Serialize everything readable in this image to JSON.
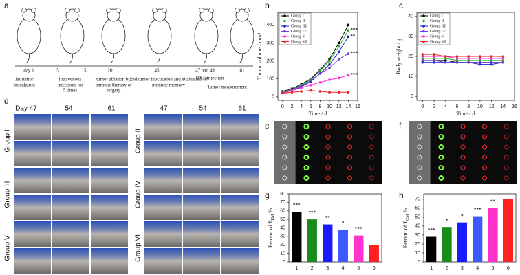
{
  "panel_letters": [
    "a",
    "b",
    "c",
    "d",
    "e",
    "f",
    "g",
    "h"
  ],
  "timeline": {
    "days": [
      "day 1",
      "5",
      "15",
      "20",
      "45",
      "47 and 49",
      "61"
    ],
    "captions": [
      [
        "1st tumor",
        "inoculation"
      ],
      [
        "intravenous",
        "injections for",
        "5 times"
      ],
      [
        "tumor ablation by",
        "immune therapy or",
        "surgery"
      ],
      [
        "2nd tumor inoculation and  evaluation of",
        "immune memory"
      ],
      [
        "IDOi injection"
      ],
      [
        "Tumor measurement"
      ]
    ]
  },
  "photos": {
    "day_headers": [
      "Day 47",
      "54",
      "61",
      "47",
      "54",
      "61"
    ],
    "groups": [
      "Group I",
      "Group III",
      "Group V",
      "Group II",
      "Group IV",
      "Group VI"
    ]
  },
  "chart_data": [
    {
      "type": "line",
      "ylabel": "Tumor volume / mm³",
      "xlabel": "Time / d",
      "x": [
        0,
        2,
        4,
        6,
        8,
        10,
        12,
        14
      ],
      "xlim": [
        -1,
        16
      ],
      "xticks": [
        0,
        2,
        4,
        6,
        8,
        10,
        12,
        14,
        16
      ],
      "ylim": [
        -20,
        470
      ],
      "yticks": [
        0,
        100,
        200,
        300,
        400
      ],
      "legend": "upper left",
      "series": [
        {
          "name": "Group I",
          "color": "#000000",
          "values": [
            30,
            45,
            70,
            100,
            150,
            210,
            300,
            400
          ],
          "significance": null
        },
        {
          "name": "Group II",
          "color": "#22b422",
          "values": [
            25,
            40,
            65,
            95,
            145,
            200,
            280,
            370
          ],
          "significance": "***"
        },
        {
          "name": "Group III",
          "color": "#1f1fd0",
          "values": [
            20,
            35,
            55,
            85,
            130,
            180,
            250,
            335
          ],
          "significance": "**"
        },
        {
          "name": "Group IV",
          "color": "#6a3dd8",
          "values": [
            20,
            40,
            60,
            90,
            130,
            160,
            210,
            240
          ],
          "significance": "***"
        },
        {
          "name": "Group V",
          "color": "#ff2bd6",
          "values": [
            20,
            35,
            50,
            65,
            80,
            95,
            105,
            120
          ],
          "significance": "***"
        },
        {
          "name": "Group VI",
          "color": "#ee2222",
          "values": [
            20,
            25,
            30,
            35,
            30,
            25,
            25,
            25
          ],
          "significance": null
        }
      ]
    },
    {
      "type": "line",
      "ylabel": "Body weight / g",
      "xlabel": "Time / d",
      "x": [
        0,
        2,
        4,
        6,
        8,
        10,
        12,
        14
      ],
      "xlim": [
        -1,
        16
      ],
      "xticks": [
        0,
        2,
        4,
        6,
        8,
        10,
        12,
        14,
        16
      ],
      "ylim": [
        -2,
        42
      ],
      "yticks": [
        0,
        10,
        20,
        30,
        40
      ],
      "legend": "upper left",
      "series": [
        {
          "name": "Group I",
          "color": "#000000",
          "values": [
            18,
            18,
            18,
            17,
            17,
            17,
            17,
            17
          ],
          "significance": null
        },
        {
          "name": "Group II",
          "color": "#22b422",
          "values": [
            19,
            19,
            19,
            18,
            18,
            18,
            18,
            18
          ],
          "significance": null
        },
        {
          "name": "Group III",
          "color": "#1f1fd0",
          "values": [
            17,
            17,
            17,
            17,
            17,
            16,
            16,
            17
          ],
          "significance": null
        },
        {
          "name": "Group IV",
          "color": "#6a3dd8",
          "values": [
            18,
            18,
            17,
            17,
            17,
            17,
            17,
            17
          ],
          "significance": null
        },
        {
          "name": "Group V",
          "color": "#ff2bd6",
          "values": [
            20,
            20,
            20,
            19,
            19,
            19,
            19,
            19
          ],
          "significance": null
        },
        {
          "name": "Group VI",
          "color": "#ee2222",
          "values": [
            21,
            21,
            20,
            20,
            20,
            20,
            20,
            20
          ],
          "significance": null
        }
      ]
    },
    {
      "type": "bar",
      "ylabel": [
        "Percent of T",
        "EM",
        " %"
      ],
      "categories": [
        "1",
        "2",
        "3",
        "4",
        "5",
        "6"
      ],
      "values": [
        59,
        50,
        44,
        38,
        31,
        20
      ],
      "colors": [
        "#000000",
        "#1a8a1a",
        "#1a1aff",
        "#3d5afe",
        "#ff33cc",
        "#ff2020"
      ],
      "annotations": [
        "***",
        "***",
        "**",
        "*",
        "***",
        null
      ],
      "ylim": [
        0,
        80
      ],
      "yticks": [
        0,
        10,
        20,
        30,
        40,
        50,
        60,
        70,
        80
      ]
    },
    {
      "type": "bar",
      "ylabel": [
        "Percent of T",
        "CM",
        " %"
      ],
      "categories": [
        "1",
        "2",
        "3",
        "4",
        "5",
        "6"
      ],
      "values": [
        28,
        39,
        44,
        51,
        60,
        70
      ],
      "colors": [
        "#000000",
        "#1a8a1a",
        "#1a1aff",
        "#3d5afe",
        "#ff33cc",
        "#ff2020"
      ],
      "annotations": [
        "***",
        "*",
        "*",
        "***",
        "**",
        null
      ],
      "ylim": [
        0,
        76
      ],
      "yticks": [
        0,
        10,
        20,
        30,
        40,
        50,
        60,
        70
      ]
    }
  ]
}
